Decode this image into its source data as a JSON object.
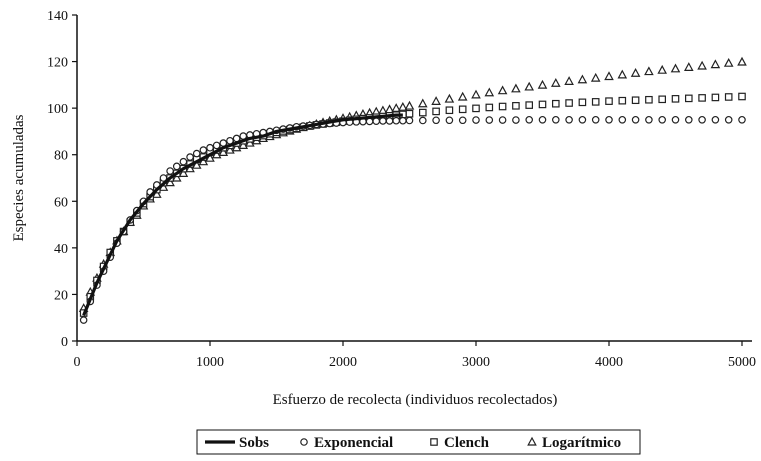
{
  "chart_data": {
    "type": "scatter",
    "xlabel": "Esfuerzo de recolecta (individuos recolectados)",
    "ylabel": "Especies acumuladas",
    "xlim": [
      0,
      5000
    ],
    "ylim": [
      0,
      140
    ],
    "x_ticks": [
      0,
      1000,
      2000,
      3000,
      4000,
      5000
    ],
    "y_ticks": [
      0,
      20,
      40,
      60,
      80,
      100,
      120,
      140
    ],
    "grid": false,
    "legend_position": "bottom",
    "series": [
      {
        "name": "Sobs",
        "type": "line",
        "marker": "none",
        "x": [
          50,
          100,
          150,
          200,
          250,
          300,
          400,
          500,
          600,
          700,
          800,
          900,
          1000,
          1100,
          1200,
          1300,
          1400,
          1500,
          1600,
          1700,
          1800,
          1900,
          2000,
          2100,
          2200,
          2300,
          2400,
          2450
        ],
        "y": [
          11,
          18,
          25,
          31,
          37,
          43,
          52,
          59,
          65,
          70,
          74,
          77,
          80,
          83,
          85,
          87,
          88,
          90,
          91,
          92,
          93,
          94,
          95,
          95.5,
          96,
          96.5,
          97,
          97
        ]
      },
      {
        "name": "Exponencial",
        "type": "scatter",
        "marker": "circle",
        "x": [
          50,
          100,
          150,
          200,
          250,
          300,
          350,
          400,
          450,
          500,
          550,
          600,
          650,
          700,
          750,
          800,
          850,
          900,
          950,
          1000,
          1050,
          1100,
          1150,
          1200,
          1250,
          1300,
          1350,
          1400,
          1450,
          1500,
          1550,
          1600,
          1650,
          1700,
          1750,
          1800,
          1850,
          1900,
          1950,
          2000,
          2050,
          2100,
          2150,
          2200,
          2250,
          2300,
          2350,
          2400,
          2450,
          2500,
          2600,
          2700,
          2800,
          2900,
          3000,
          3100,
          3200,
          3300,
          3400,
          3500,
          3600,
          3700,
          3800,
          3900,
          4000,
          4100,
          4200,
          4300,
          4400,
          4500,
          4600,
          4700,
          4800,
          4900,
          5000
        ],
        "y": [
          9,
          17,
          24,
          30,
          36,
          42,
          47,
          52,
          56,
          60,
          64,
          67,
          70,
          73,
          75,
          77,
          79,
          80.5,
          82,
          83,
          84,
          85,
          86,
          87,
          88,
          88.5,
          89,
          89.5,
          90,
          90.5,
          91,
          91.5,
          92,
          92.3,
          92.6,
          93,
          93.2,
          93.4,
          93.6,
          93.8,
          94,
          94.1,
          94.2,
          94.3,
          94.4,
          94.5,
          94.5,
          94.6,
          94.6,
          94.7,
          94.7,
          94.8,
          94.8,
          94.8,
          94.9,
          94.9,
          94.9,
          94.9,
          95,
          95,
          95,
          95,
          95,
          95,
          95,
          95,
          95,
          95,
          95,
          95,
          95,
          95,
          95,
          95,
          95
        ]
      },
      {
        "name": "Clench",
        "type": "scatter",
        "marker": "square",
        "x": [
          50,
          100,
          150,
          200,
          250,
          300,
          350,
          400,
          450,
          500,
          550,
          600,
          650,
          700,
          750,
          800,
          850,
          900,
          950,
          1000,
          1050,
          1100,
          1150,
          1200,
          1250,
          1300,
          1350,
          1400,
          1450,
          1500,
          1550,
          1600,
          1650,
          1700,
          1750,
          1800,
          1850,
          1900,
          1950,
          2000,
          2050,
          2100,
          2150,
          2200,
          2250,
          2300,
          2350,
          2400,
          2450,
          2500,
          2600,
          2700,
          2800,
          2900,
          3000,
          3100,
          3200,
          3300,
          3400,
          3500,
          3600,
          3700,
          3800,
          3900,
          4000,
          4100,
          4200,
          4300,
          4400,
          4500,
          4600,
          4700,
          4800,
          4900,
          5000
        ],
        "y": [
          12,
          19,
          26,
          32,
          38,
          43,
          47,
          51,
          55,
          59,
          62,
          65,
          68,
          70,
          72,
          74,
          76,
          78,
          79,
          81,
          82,
          83,
          84,
          85,
          86,
          86.8,
          87.5,
          88.2,
          89,
          89.6,
          90.2,
          90.8,
          91.3,
          91.8,
          92.3,
          92.8,
          93.2,
          93.6,
          94,
          94.4,
          94.8,
          95.2,
          95.5,
          95.8,
          96.1,
          96.4,
          96.7,
          97,
          97.3,
          97.6,
          98.1,
          98.6,
          99.1,
          99.5,
          99.9,
          100.3,
          100.7,
          101,
          101.3,
          101.6,
          101.9,
          102.2,
          102.5,
          102.7,
          103,
          103.2,
          103.4,
          103.6,
          103.8,
          104,
          104.2,
          104.4,
          104.6,
          104.8,
          105
        ]
      },
      {
        "name": "Logarítmico",
        "type": "scatter",
        "marker": "triangle",
        "x": [
          50,
          100,
          150,
          200,
          250,
          300,
          350,
          400,
          450,
          500,
          550,
          600,
          650,
          700,
          750,
          800,
          850,
          900,
          950,
          1000,
          1050,
          1100,
          1150,
          1200,
          1250,
          1300,
          1350,
          1400,
          1450,
          1500,
          1550,
          1600,
          1650,
          1700,
          1750,
          1800,
          1850,
          1900,
          1950,
          2000,
          2050,
          2100,
          2150,
          2200,
          2250,
          2300,
          2350,
          2400,
          2450,
          2500,
          2600,
          2700,
          2800,
          2900,
          3000,
          3100,
          3200,
          3300,
          3400,
          3500,
          3600,
          3700,
          3800,
          3900,
          4000,
          4100,
          4200,
          4300,
          4400,
          4500,
          4600,
          4700,
          4800,
          4900,
          5000
        ],
        "y": [
          14,
          21,
          27,
          33,
          38,
          43,
          47,
          51,
          54,
          58,
          61,
          63,
          66,
          68,
          70,
          72,
          74,
          75.5,
          77,
          78.5,
          80,
          81,
          82,
          83,
          84,
          85,
          86,
          87,
          87.8,
          88.6,
          89.4,
          90.2,
          91,
          91.7,
          92.4,
          93.1,
          93.8,
          94.4,
          95,
          95.6,
          96.2,
          96.8,
          97.4,
          97.9,
          98.4,
          98.9,
          99.4,
          99.9,
          100.4,
          100.9,
          101.9,
          102.9,
          103.9,
          104.8,
          105.7,
          106.6,
          107.5,
          108.3,
          109.1,
          109.9,
          110.7,
          111.5,
          112.2,
          112.9,
          113.6,
          114.3,
          115,
          115.7,
          116.3,
          116.9,
          117.5,
          118.1,
          118.7,
          119.3,
          119.8
        ]
      }
    ]
  }
}
